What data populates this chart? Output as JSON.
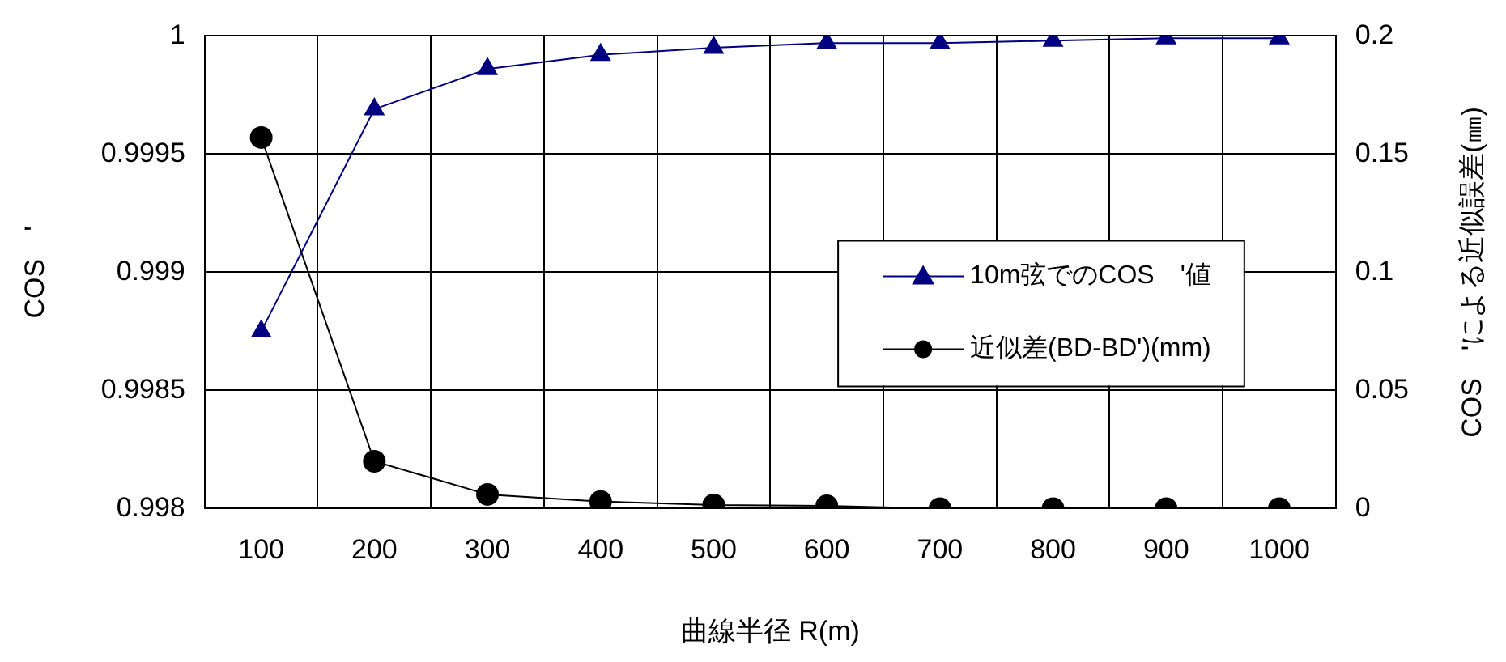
{
  "chart_data": {
    "type": "line",
    "xlabel": "曲線半径 R(m)",
    "ylabel": "COS　'",
    "y2label": "COS　'による近似誤差(㎜)",
    "categories": [
      "100",
      "200",
      "300",
      "400",
      "500",
      "600",
      "700",
      "800",
      "900",
      "1000"
    ],
    "series": [
      {
        "name": "10m弦でのCOS　'値",
        "color": "#000080",
        "marker": "triangle",
        "values": [
          0.99875,
          0.99969,
          0.99986,
          0.99992,
          0.99995,
          0.99997,
          0.99997,
          0.99998,
          0.99999,
          0.99999
        ]
      },
      {
        "name": "近似差(BD-BD')(mm)",
        "color": "#000000",
        "marker": "circle",
        "axis": "y2",
        "values": [
          0.157,
          0.02,
          0.006,
          0.003,
          0.0015,
          0.0012,
          0,
          0,
          0,
          0
        ]
      }
    ],
    "ylim": [
      0.998,
      1
    ],
    "yticks": [
      0.998,
      0.9985,
      0.999,
      0.9995,
      1
    ],
    "y2lim": [
      0,
      0.2
    ],
    "y2ticks": [
      0,
      0.05,
      0.1,
      0.15,
      0.2
    ],
    "grid": true,
    "legend": "center right",
    "line_style": "solid"
  }
}
